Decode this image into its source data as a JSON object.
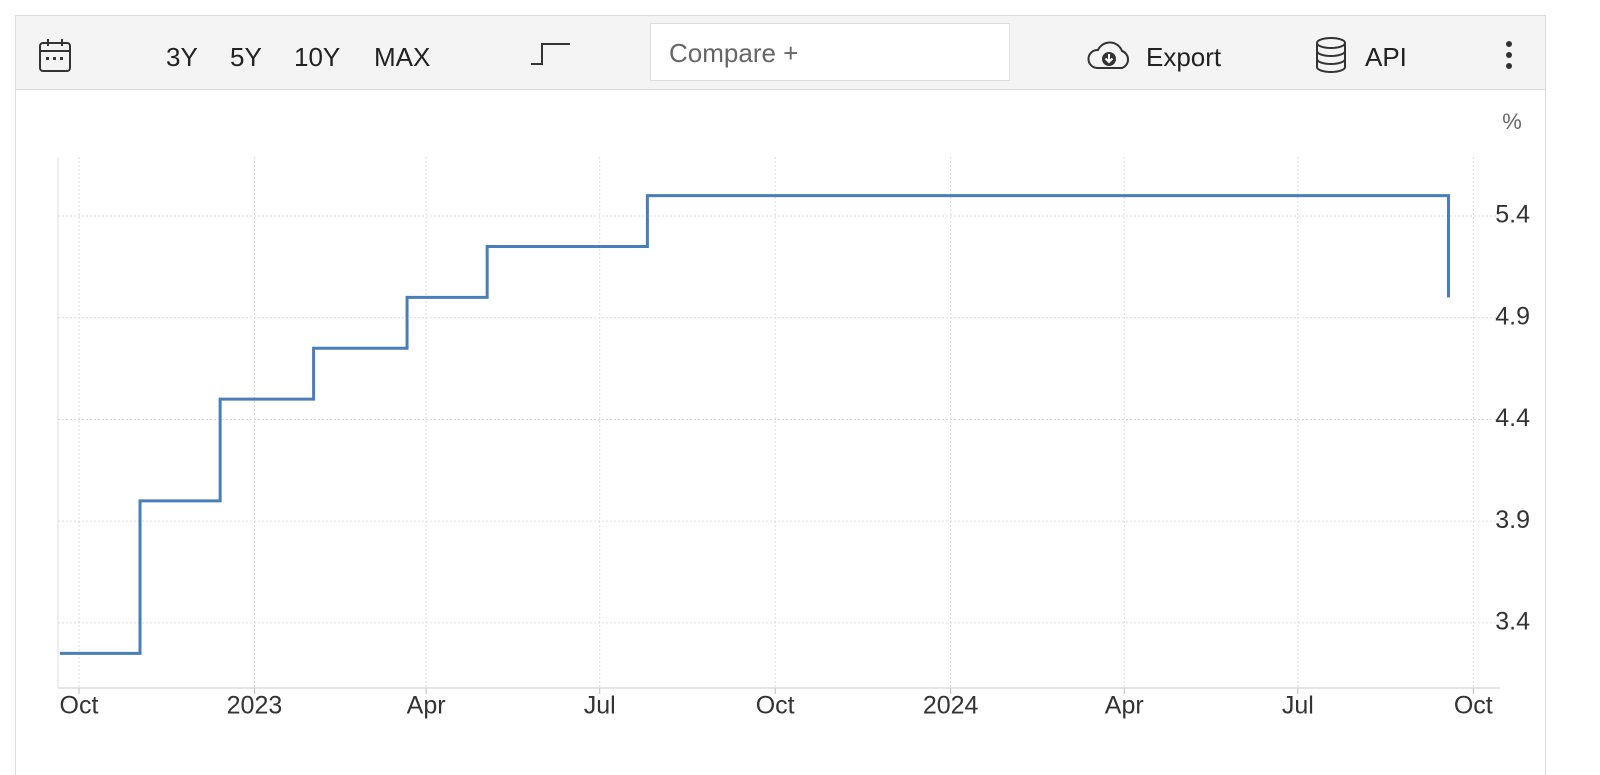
{
  "toolbar": {
    "ranges": [
      "3Y",
      "5Y",
      "10Y",
      "MAX"
    ],
    "compare": "Compare +",
    "export": "Export",
    "api": "API"
  },
  "chart_data": {
    "type": "step-line",
    "unit": "%",
    "x": [
      "2022-09-21",
      "2022-11-02",
      "2022-12-14",
      "2023-02-01",
      "2023-03-22",
      "2023-05-03",
      "2023-07-26",
      "2024-09-18"
    ],
    "series": [
      {
        "color": "#4a7ebb",
        "values": [
          3.25,
          4.0,
          4.5,
          4.75,
          5.0,
          5.25,
          5.5,
          5.0
        ]
      }
    ],
    "xlim": [
      "2022-09-20",
      "2024-10-15"
    ],
    "xticks": [
      {
        "value": "2022-10-01",
        "label": "Oct"
      },
      {
        "value": "2023-01-01",
        "label": "2023"
      },
      {
        "value": "2023-04-01",
        "label": "Apr"
      },
      {
        "value": "2023-07-01",
        "label": "Jul"
      },
      {
        "value": "2023-10-01",
        "label": "Oct"
      },
      {
        "value": "2024-01-01",
        "label": "2024"
      },
      {
        "value": "2024-04-01",
        "label": "Apr"
      },
      {
        "value": "2024-07-01",
        "label": "Jul"
      },
      {
        "value": "2024-10-01",
        "label": "Oct"
      }
    ],
    "ylim": [
      3.08,
      5.69
    ],
    "yticks": [
      3.4,
      3.9,
      4.4,
      4.9,
      5.4
    ],
    "grid": true
  }
}
